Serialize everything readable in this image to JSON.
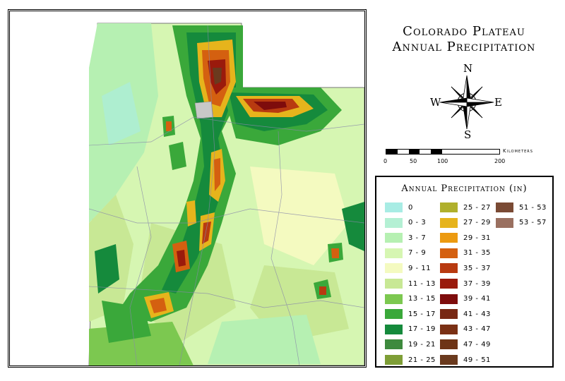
{
  "title": {
    "line1": "Colorado Plateau",
    "line2": "Annual Precipitation"
  },
  "compass": {
    "icon": "compass-rose-icon",
    "north": "N",
    "south": "S",
    "east": "E",
    "west": "W"
  },
  "scale": {
    "units": "Kilometers",
    "ticks": [
      "0",
      "50",
      "100",
      "200"
    ]
  },
  "legend": {
    "title": "Annual Precipitation (in)",
    "items": [
      {
        "label": "0",
        "color": "#a8ece4"
      },
      {
        "label": "0 - 3",
        "color": "#b4f0d4"
      },
      {
        "label": "3 - 7",
        "color": "#b6f0b2"
      },
      {
        "label": "7 - 9",
        "color": "#d6f6b2"
      },
      {
        "label": "9 - 11",
        "color": "#f4fac0"
      },
      {
        "label": "11 - 13",
        "color": "#c8e895"
      },
      {
        "label": "13 - 15",
        "color": "#7cc850"
      },
      {
        "label": "15 - 17",
        "color": "#3aa83a"
      },
      {
        "label": "17 - 19",
        "color": "#158a3c"
      },
      {
        "label": "19 - 21",
        "color": "#3e8a3e"
      },
      {
        "label": "21 - 25",
        "color": "#7e9e36"
      },
      {
        "label": "25 - 27",
        "color": "#b0b02c"
      },
      {
        "label": "27 - 29",
        "color": "#e6b41c"
      },
      {
        "label": "29 - 31",
        "color": "#ec9a10"
      },
      {
        "label": "31 - 35",
        "color": "#d46010"
      },
      {
        "label": "35 - 37",
        "color": "#b83a10"
      },
      {
        "label": "37 - 39",
        "color": "#9a1a0c"
      },
      {
        "label": "39 - 41",
        "color": "#7e0c0c"
      },
      {
        "label": "41 - 43",
        "color": "#782814"
      },
      {
        "label": "43 - 47",
        "color": "#7a3014"
      },
      {
        "label": "47 - 49",
        "color": "#6e3416"
      },
      {
        "label": "49 - 51",
        "color": "#6a3a1e"
      },
      {
        "label": "51 - 53",
        "color": "#7a4a34"
      },
      {
        "label": "53 - 57",
        "color": "#9a7060"
      }
    ]
  }
}
